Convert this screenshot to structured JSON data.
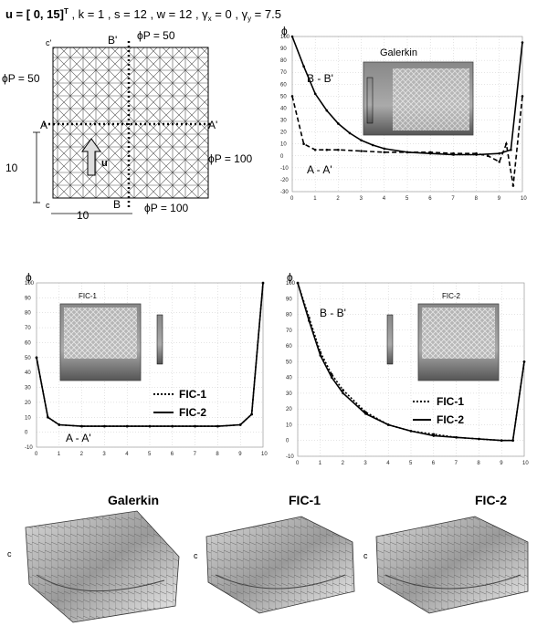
{
  "header": {
    "u_label": "u = [ 0, 15]",
    "u_sup": "T",
    "params": " , k = 1 , s = 12 , w = 12 , ",
    "gx": "γ",
    "gx_sub": "x",
    "gx_val": " = 0 , ",
    "gy": "γ",
    "gy_sub": "y",
    "gy_val": " = 7.5"
  },
  "mesh_panel": {
    "corner_c_top": "c'",
    "corner_c_bottom": "c",
    "b_prime": "B'",
    "b": "B",
    "a": "A",
    "a_prime": "A'",
    "phi_top": "ϕP = 50",
    "phi_left": "ϕP = 50",
    "phi_right": "ϕP = 100",
    "phi_bottom": "ϕP = 100",
    "dim_left": "10",
    "dim_bottom": "10",
    "u_arrow_label": "u"
  },
  "plots": {
    "y_axis_symbol": "ϕ",
    "galerkin_title": "Galerkin",
    "bb_label": "B - B'",
    "aa_label": "A - A'",
    "fic1_title": "FIC-1",
    "fic2_title": "FIC-2",
    "legend_fic1": "FIC-1",
    "legend_fic2": "FIC-2",
    "x_ticks": [
      "0",
      "1",
      "2",
      "3",
      "4",
      "5",
      "6",
      "7",
      "8",
      "9",
      "10"
    ],
    "y_ticks_top_right": [
      "100",
      "90",
      "80",
      "70",
      "60",
      "50",
      "40",
      "30",
      "20",
      "10",
      "0",
      "-10",
      "-20",
      "-30"
    ],
    "y_ticks_bottom_right": [
      "100",
      "90",
      "80",
      "70",
      "60",
      "50",
      "40",
      "30",
      "20",
      "10",
      "0",
      "-10"
    ],
    "y_ticks_bottom_left": [
      "100",
      "90",
      "80",
      "70",
      "60",
      "50",
      "40",
      "30",
      "20",
      "10",
      "0",
      "-10"
    ]
  },
  "surfaces": {
    "title_galerkin": "Galerkin",
    "title_fic1": "FIC-1",
    "title_fic2": "FIC-2",
    "c_label": "c"
  },
  "chart_data": [
    {
      "type": "line",
      "title": "Galerkin",
      "xlim": [
        0,
        10
      ],
      "ylim": [
        -30,
        100
      ],
      "series": [
        {
          "name": "B - B'",
          "x": [
            0,
            0.5,
            1,
            1.5,
            2,
            2.5,
            3,
            3.5,
            4,
            5,
            6,
            7,
            8,
            9,
            9.5,
            10
          ],
          "y": [
            100,
            75,
            52,
            38,
            27,
            19,
            13,
            9,
            6,
            3,
            2,
            1,
            1,
            2,
            5,
            95
          ]
        },
        {
          "name": "A - A'",
          "x": [
            0,
            0.5,
            1,
            1.5,
            2,
            3,
            4,
            5,
            6,
            7,
            8,
            8.5,
            9,
            9.3,
            9.6,
            10
          ],
          "y": [
            50,
            10,
            5,
            5,
            5,
            4,
            3,
            3,
            3,
            2,
            2,
            0,
            -5,
            10,
            -25,
            50
          ]
        }
      ]
    },
    {
      "type": "line",
      "title": "FIC-1",
      "xlim": [
        0,
        10
      ],
      "ylim": [
        -10,
        100
      ],
      "series": [
        {
          "name": "FIC-1",
          "x": [
            0,
            0.5,
            1,
            2,
            3,
            4,
            5,
            6,
            7,
            8,
            9,
            9.5,
            10
          ],
          "y": [
            50,
            10,
            5,
            4,
            4,
            4,
            4,
            4,
            4,
            4,
            5,
            12,
            100
          ]
        },
        {
          "name": "FIC-2",
          "x": [
            0,
            0.5,
            1,
            2,
            3,
            4,
            5,
            6,
            7,
            8,
            9,
            9.5,
            10
          ],
          "y": [
            50,
            10,
            5,
            4,
            4,
            4,
            4,
            4,
            4,
            4,
            5,
            12,
            100
          ]
        }
      ]
    },
    {
      "type": "line",
      "title": "FIC-2",
      "xlim": [
        0,
        10
      ],
      "ylim": [
        -10,
        100
      ],
      "series": [
        {
          "name": "FIC-1",
          "x": [
            0,
            0.5,
            1,
            1.5,
            2,
            3,
            4,
            5,
            6,
            7,
            8,
            9,
            9.5,
            10
          ],
          "y": [
            100,
            78,
            56,
            42,
            32,
            18,
            10,
            6,
            4,
            2,
            1,
            0,
            0,
            50
          ]
        },
        {
          "name": "FIC-2",
          "x": [
            0,
            0.5,
            1,
            1.5,
            2,
            3,
            4,
            5,
            6,
            7,
            8,
            9,
            9.5,
            10
          ],
          "y": [
            100,
            76,
            54,
            40,
            30,
            17,
            10,
            6,
            3,
            2,
            1,
            0,
            0,
            50
          ]
        }
      ]
    }
  ]
}
